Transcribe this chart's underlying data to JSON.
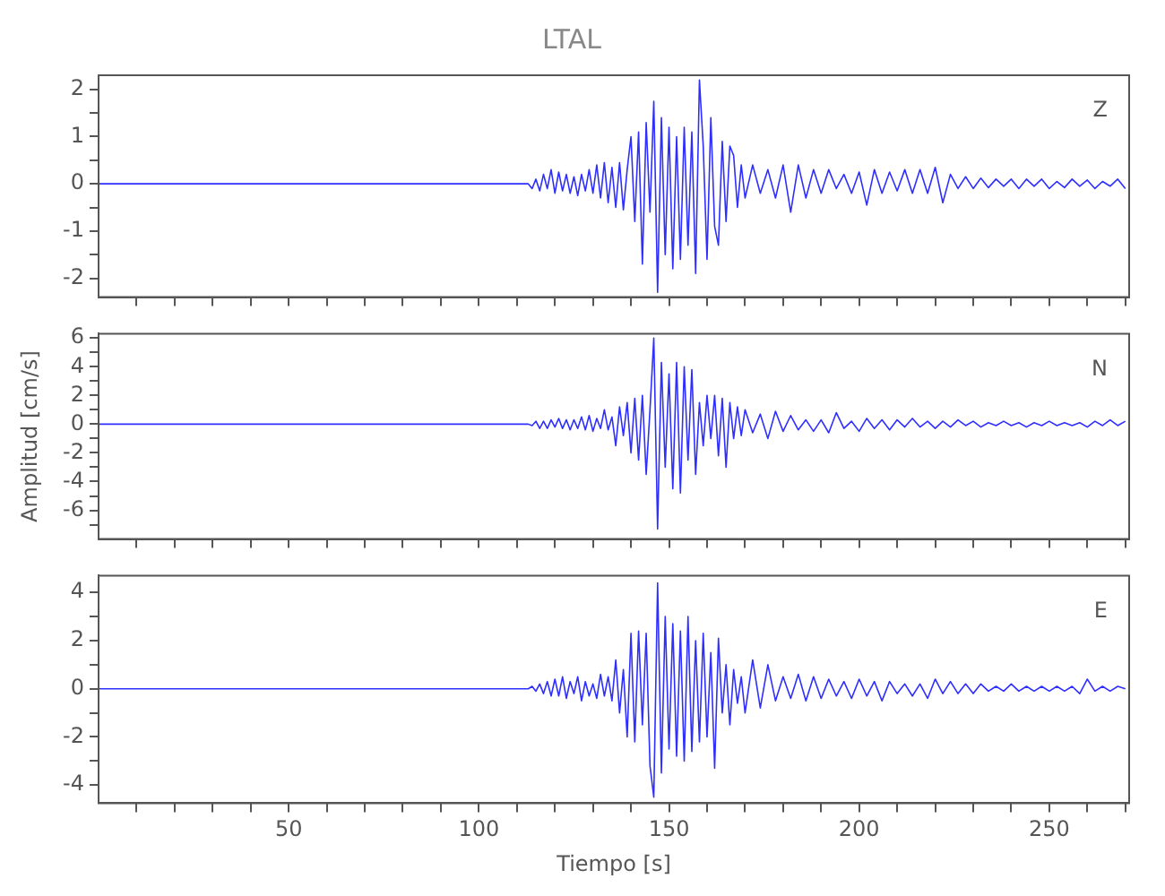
{
  "chart_data": [
    {
      "type": "line",
      "title": "LTAL",
      "tick_labels": "y",
      "xlim": [
        0,
        271
      ],
      "ylim": [
        -2.4,
        2.3
      ],
      "xticks": [
        {
          "value": 10,
          "label": null
        },
        {
          "value": 20,
          "label": null
        },
        {
          "value": 30,
          "label": null
        },
        {
          "value": 40,
          "label": null
        },
        {
          "value": 50,
          "label": null
        },
        {
          "value": 60,
          "label": null
        },
        {
          "value": 70,
          "label": null
        },
        {
          "value": 80,
          "label": null
        },
        {
          "value": 90,
          "label": null
        },
        {
          "value": 100,
          "label": null
        },
        {
          "value": 110,
          "label": null
        },
        {
          "value": 120,
          "label": null
        },
        {
          "value": 130,
          "label": null
        },
        {
          "value": 140,
          "label": null
        },
        {
          "value": 150,
          "label": null
        },
        {
          "value": 160,
          "label": null
        },
        {
          "value": 170,
          "label": null
        },
        {
          "value": 180,
          "label": null
        },
        {
          "value": 190,
          "label": null
        },
        {
          "value": 200,
          "label": null
        },
        {
          "value": 210,
          "label": null
        },
        {
          "value": 220,
          "label": null
        },
        {
          "value": 230,
          "label": null
        },
        {
          "value": 240,
          "label": null
        },
        {
          "value": 250,
          "label": null
        },
        {
          "value": 260,
          "label": null
        },
        {
          "value": 270,
          "label": null
        }
      ],
      "yticks": [
        -2,
        {
          "value": -1.5,
          "label": null
        },
        -1,
        {
          "value": -0.5,
          "label": null
        },
        0,
        {
          "value": 0.5,
          "label": null
        },
        1,
        {
          "value": 1.5,
          "label": null
        },
        2
      ],
      "x": [
        0,
        112,
        113,
        114,
        115,
        116,
        117,
        118,
        119,
        120,
        121,
        122,
        123,
        124,
        125,
        126,
        127,
        128,
        129,
        130,
        131,
        132,
        133,
        134,
        135,
        136,
        137,
        138,
        139,
        140,
        141,
        142,
        143,
        144,
        145,
        146,
        147,
        148,
        149,
        150,
        151,
        152,
        153,
        154,
        155,
        156,
        157,
        158,
        159,
        160,
        161,
        162,
        163,
        164,
        165,
        166,
        167,
        168,
        169,
        170,
        172,
        174,
        176,
        178,
        180,
        182,
        184,
        186,
        188,
        190,
        192,
        194,
        196,
        198,
        200,
        202,
        204,
        206,
        208,
        210,
        212,
        214,
        216,
        218,
        220,
        222,
        224,
        226,
        228,
        230,
        232,
        234,
        236,
        238,
        240,
        242,
        244,
        246,
        248,
        250,
        252,
        254,
        256,
        258,
        260,
        262,
        264,
        266,
        268,
        270
      ],
      "series": [
        {
          "name": "Z",
          "color": "#2e2eff",
          "values": [
            0,
            0,
            0.0,
            -0.1,
            0.1,
            -0.15,
            0.2,
            -0.1,
            0.3,
            -0.2,
            0.25,
            -0.15,
            0.2,
            -0.2,
            0.15,
            -0.25,
            0.2,
            -0.15,
            0.3,
            -0.2,
            0.4,
            -0.3,
            0.45,
            -0.4,
            0.35,
            -0.5,
            0.45,
            -0.55,
            0.3,
            1.0,
            -0.8,
            1.1,
            -1.7,
            1.3,
            -0.6,
            1.75,
            -2.3,
            1.4,
            -1.5,
            1.2,
            -1.8,
            1.0,
            -1.6,
            1.2,
            -1.3,
            1.1,
            -1.9,
            2.2,
            0.8,
            -1.6,
            1.4,
            -0.9,
            -1.3,
            0.9,
            -0.8,
            0.8,
            0.6,
            -0.5,
            0.4,
            -0.3,
            0.4,
            -0.2,
            0.3,
            -0.3,
            0.4,
            -0.6,
            0.4,
            -0.3,
            0.3,
            -0.2,
            0.3,
            -0.1,
            0.2,
            -0.2,
            0.25,
            -0.45,
            0.3,
            -0.2,
            0.25,
            -0.15,
            0.3,
            -0.2,
            0.3,
            -0.2,
            0.35,
            -0.4,
            0.2,
            -0.1,
            0.15,
            -0.1,
            0.12,
            -0.08,
            0.1,
            -0.05,
            0.1,
            -0.1,
            0.1,
            -0.05,
            0.1,
            -0.1,
            0.05,
            -0.08,
            0.1,
            -0.05,
            0.08,
            -0.1,
            0.05,
            -0.05,
            0.1,
            -0.1
          ]
        }
      ]
    },
    {
      "type": "line",
      "ylabel": "Amplitud [cm/s]",
      "tick_labels": "y",
      "xlim": [
        0,
        271
      ],
      "ylim": [
        -8,
        6.3
      ],
      "xticks": [
        {
          "value": 10,
          "label": null
        },
        {
          "value": 20,
          "label": null
        },
        {
          "value": 30,
          "label": null
        },
        {
          "value": 40,
          "label": null
        },
        {
          "value": 50,
          "label": null
        },
        {
          "value": 60,
          "label": null
        },
        {
          "value": 70,
          "label": null
        },
        {
          "value": 80,
          "label": null
        },
        {
          "value": 90,
          "label": null
        },
        {
          "value": 100,
          "label": null
        },
        {
          "value": 110,
          "label": null
        },
        {
          "value": 120,
          "label": null
        },
        {
          "value": 130,
          "label": null
        },
        {
          "value": 140,
          "label": null
        },
        {
          "value": 150,
          "label": null
        },
        {
          "value": 160,
          "label": null
        },
        {
          "value": 170,
          "label": null
        },
        {
          "value": 180,
          "label": null
        },
        {
          "value": 190,
          "label": null
        },
        {
          "value": 200,
          "label": null
        },
        {
          "value": 210,
          "label": null
        },
        {
          "value": 220,
          "label": null
        },
        {
          "value": 230,
          "label": null
        },
        {
          "value": 240,
          "label": null
        },
        {
          "value": 250,
          "label": null
        },
        {
          "value": 260,
          "label": null
        },
        {
          "value": 270,
          "label": null
        }
      ],
      "yticks": [
        {
          "value": -7,
          "label": null
        },
        -6,
        {
          "value": -5,
          "label": null
        },
        -4,
        {
          "value": -3,
          "label": null
        },
        -2,
        {
          "value": -1,
          "label": null
        },
        0,
        {
          "value": 1,
          "label": null
        },
        2,
        {
          "value": 3,
          "label": null
        },
        4,
        {
          "value": 5,
          "label": null
        },
        6
      ],
      "x": [
        0,
        112,
        113,
        114,
        115,
        116,
        117,
        118,
        119,
        120,
        121,
        122,
        123,
        124,
        125,
        126,
        127,
        128,
        129,
        130,
        131,
        132,
        133,
        134,
        135,
        136,
        137,
        138,
        139,
        140,
        141,
        142,
        143,
        144,
        145,
        146,
        147,
        148,
        149,
        150,
        151,
        152,
        153,
        154,
        155,
        156,
        157,
        158,
        159,
        160,
        161,
        162,
        163,
        164,
        165,
        166,
        167,
        168,
        169,
        170,
        172,
        174,
        176,
        178,
        180,
        182,
        184,
        186,
        188,
        190,
        192,
        194,
        196,
        198,
        200,
        202,
        204,
        206,
        208,
        210,
        212,
        214,
        216,
        218,
        220,
        222,
        224,
        226,
        228,
        230,
        232,
        234,
        236,
        238,
        240,
        242,
        244,
        246,
        248,
        250,
        252,
        254,
        256,
        258,
        260,
        262,
        264,
        266,
        268,
        270
      ],
      "series": [
        {
          "name": "N",
          "color": "#2e2eff",
          "values": [
            0,
            0,
            0,
            -0.1,
            0.2,
            -0.3,
            0.2,
            -0.3,
            0.3,
            -0.2,
            0.4,
            -0.3,
            0.3,
            -0.4,
            0.3,
            -0.3,
            0.5,
            -0.4,
            0.6,
            -0.5,
            0.4,
            -0.3,
            1.0,
            -0.4,
            0.5,
            -1.5,
            1.2,
            -0.8,
            1.5,
            -2.0,
            1.8,
            -2.5,
            2.0,
            -3.5,
            1.0,
            6.0,
            -7.3,
            4.3,
            -3.0,
            3.5,
            -4.5,
            4.3,
            -4.8,
            4.0,
            -2.5,
            3.8,
            -3.5,
            1.5,
            -1.5,
            2.0,
            -1.0,
            2.0,
            -2.2,
            1.8,
            -3.0,
            1.5,
            -1.0,
            1.2,
            -0.8,
            1.0,
            -0.6,
            0.7,
            -1.0,
            0.9,
            -0.5,
            0.6,
            -0.4,
            0.3,
            -0.5,
            0.3,
            -0.6,
            0.8,
            -0.3,
            0.2,
            -0.5,
            0.4,
            -0.3,
            0.3,
            -0.4,
            0.3,
            -0.2,
            0.4,
            -0.2,
            0.2,
            -0.3,
            0.2,
            -0.2,
            0.3,
            -0.1,
            0.2,
            -0.2,
            0.1,
            -0.1,
            0.2,
            -0.1,
            0.1,
            -0.2,
            0.1,
            -0.1,
            0.2,
            -0.1,
            0.1,
            -0.1,
            0.1,
            -0.2,
            0.2,
            -0.1,
            0.3,
            -0.1,
            0.2
          ]
        }
      ]
    },
    {
      "type": "line",
      "xlabel": "Tiempo [s]",
      "xlim": [
        0,
        271
      ],
      "ylim": [
        -4.75,
        4.7
      ],
      "xticks": [
        {
          "value": 10,
          "label": null
        },
        {
          "value": 20,
          "label": null
        },
        {
          "value": 30,
          "label": null
        },
        {
          "value": 40,
          "label": null
        },
        50,
        {
          "value": 60,
          "label": null
        },
        {
          "value": 70,
          "label": null
        },
        {
          "value": 80,
          "label": null
        },
        {
          "value": 90,
          "label": null
        },
        100,
        {
          "value": 110,
          "label": null
        },
        {
          "value": 120,
          "label": null
        },
        {
          "value": 130,
          "label": null
        },
        {
          "value": 140,
          "label": null
        },
        150,
        {
          "value": 160,
          "label": null
        },
        {
          "value": 170,
          "label": null
        },
        {
          "value": 180,
          "label": null
        },
        {
          "value": 190,
          "label": null
        },
        200,
        {
          "value": 210,
          "label": null
        },
        {
          "value": 220,
          "label": null
        },
        {
          "value": 230,
          "label": null
        },
        {
          "value": 240,
          "label": null
        },
        250,
        {
          "value": 260,
          "label": null
        },
        {
          "value": 270,
          "label": null
        }
      ],
      "yticks": [
        -4,
        {
          "value": -3,
          "label": null
        },
        -2,
        {
          "value": -1,
          "label": null
        },
        0,
        {
          "value": 1,
          "label": null
        },
        2,
        {
          "value": 3,
          "label": null
        },
        4
      ],
      "x": [
        0,
        112,
        113,
        114,
        115,
        116,
        117,
        118,
        119,
        120,
        121,
        122,
        123,
        124,
        125,
        126,
        127,
        128,
        129,
        130,
        131,
        132,
        133,
        134,
        135,
        136,
        137,
        138,
        139,
        140,
        141,
        142,
        143,
        144,
        145,
        146,
        147,
        148,
        149,
        150,
        151,
        152,
        153,
        154,
        155,
        156,
        157,
        158,
        159,
        160,
        161,
        162,
        163,
        164,
        165,
        166,
        167,
        168,
        169,
        170,
        172,
        174,
        176,
        178,
        180,
        182,
        184,
        186,
        188,
        190,
        192,
        194,
        196,
        198,
        200,
        202,
        204,
        206,
        208,
        210,
        212,
        214,
        216,
        218,
        220,
        222,
        224,
        226,
        228,
        230,
        232,
        234,
        236,
        238,
        240,
        242,
        244,
        246,
        248,
        250,
        252,
        254,
        256,
        258,
        260,
        262,
        264,
        266,
        268,
        270
      ],
      "series": [
        {
          "name": "E",
          "color": "#2e2eff",
          "values": [
            0,
            0,
            0,
            0.1,
            -0.1,
            0.2,
            -0.2,
            0.3,
            -0.3,
            0.4,
            -0.3,
            0.5,
            -0.4,
            0.3,
            -0.2,
            0.5,
            -0.5,
            0.3,
            -0.3,
            0.2,
            -0.4,
            0.6,
            -0.3,
            0.5,
            -0.5,
            1.2,
            -1.0,
            0.8,
            -2.0,
            2.3,
            -2.2,
            2.4,
            -1.5,
            2.3,
            -3.2,
            -4.5,
            4.4,
            -3.5,
            3.0,
            -2.5,
            2.7,
            -2.8,
            2.4,
            -3.0,
            3.0,
            -2.6,
            2.0,
            -2.2,
            2.3,
            -2.0,
            1.5,
            -3.3,
            2.1,
            -1.0,
            1.0,
            -1.5,
            0.8,
            -0.6,
            0.5,
            -1.0,
            1.2,
            -0.8,
            1.0,
            -0.5,
            0.5,
            -0.4,
            0.6,
            -0.5,
            0.5,
            -0.4,
            0.4,
            -0.3,
            0.3,
            -0.4,
            0.4,
            -0.3,
            0.3,
            -0.5,
            0.3,
            -0.2,
            0.2,
            -0.3,
            0.2,
            -0.4,
            0.4,
            -0.2,
            0.3,
            -0.2,
            0.2,
            -0.2,
            0.2,
            -0.1,
            0.1,
            -0.1,
            0.2,
            -0.1,
            0.1,
            -0.1,
            0.1,
            -0.1,
            0.1,
            -0.1,
            0.1,
            -0.2,
            0.4,
            -0.1,
            0.1,
            -0.1,
            0.1,
            0.0
          ]
        }
      ]
    }
  ]
}
